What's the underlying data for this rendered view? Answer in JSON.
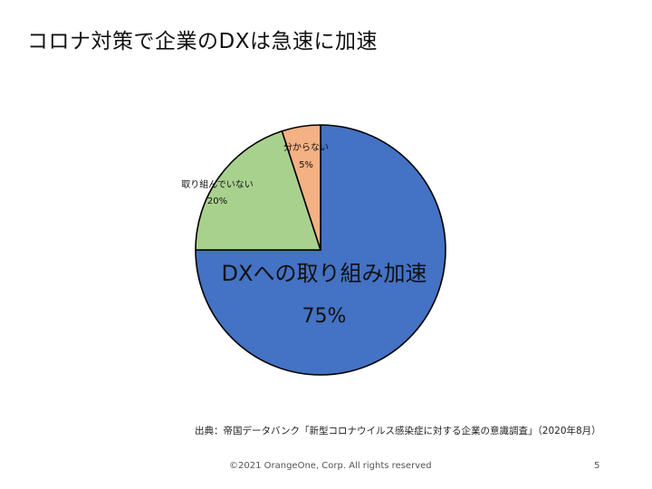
{
  "slide": {
    "title": "コロナ対策で企業のDXは急速に加速",
    "source": "出典：帝国データバンク「新型コロナウイルス感染症に対する企業の意識調査」（2020年8月）",
    "copyright": "©2021 OrangeOne, Corp. All rights reserved",
    "page_number": "5"
  },
  "chart_data": {
    "type": "pie",
    "title": "",
    "categories": [
      "DXへの取り組み加速",
      "取り組んでいない",
      "分からない"
    ],
    "values": [
      75,
      20,
      5
    ],
    "labels": [
      "75%",
      "20%",
      "5%"
    ],
    "colors": [
      "#4472C4",
      "#A9D18E",
      "#F4B183"
    ],
    "start_angle_deg": 0,
    "direction": "clockwise",
    "legend": "none"
  }
}
